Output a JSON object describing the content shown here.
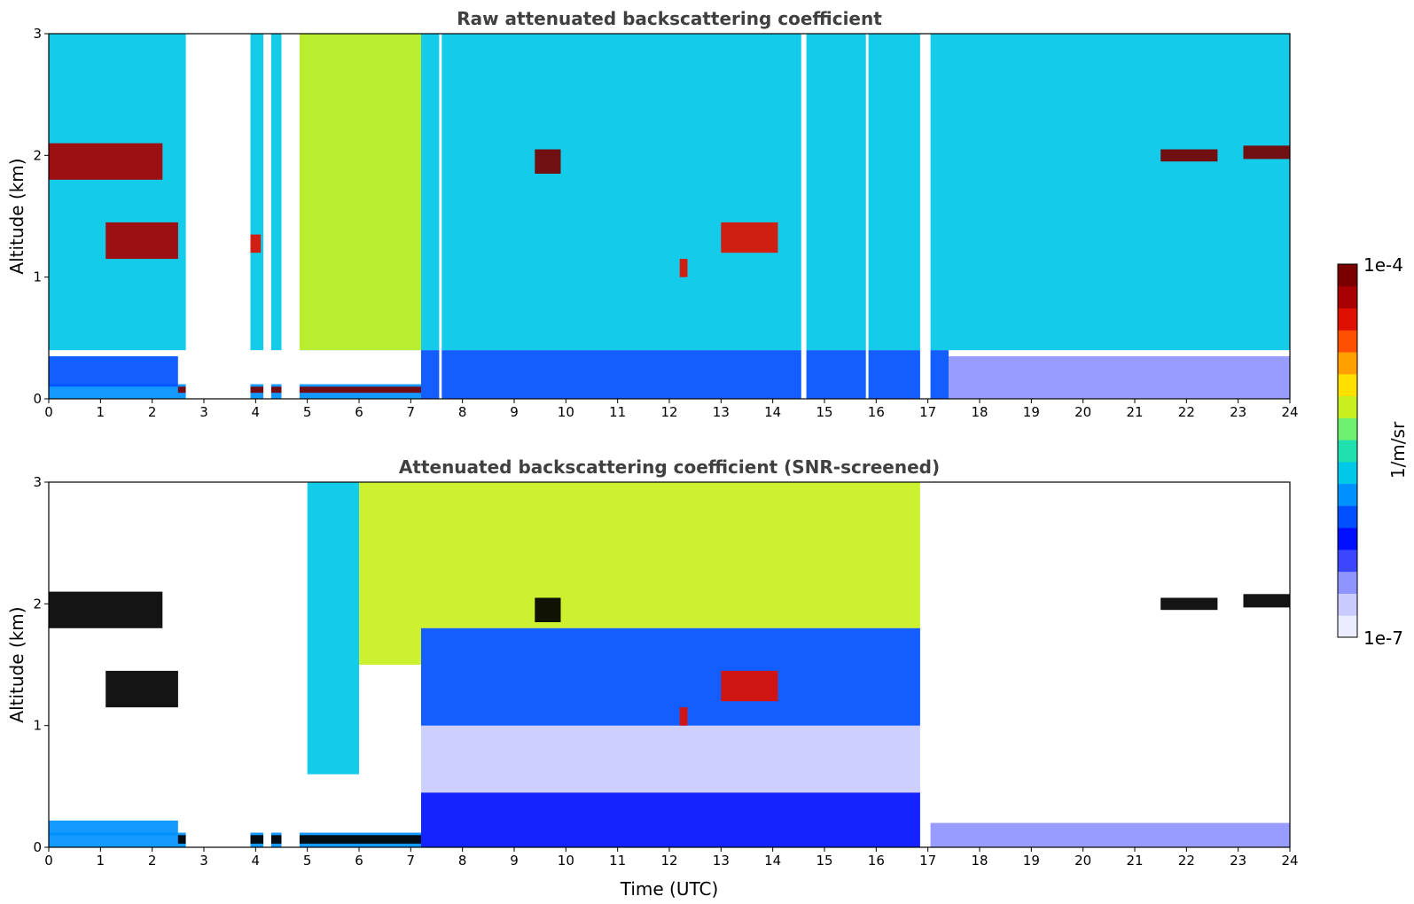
{
  "colors": {
    "colormap": [
      "#ececff",
      "#c9cbff",
      "#8f94ff",
      "#3d46ff",
      "#0010ff",
      "#0050ff",
      "#0090ff",
      "#00c8e8",
      "#20e0b0",
      "#70f070",
      "#c8f020",
      "#ffe000",
      "#ffa000",
      "#ff5000",
      "#e01000",
      "#a80000",
      "#7a0000"
    ],
    "screened_saturated": "#000000",
    "title_text": "#404040"
  },
  "chart_data": [
    {
      "type": "heatmap",
      "title": "Raw attenuated backscattering coefficient",
      "xlabel": "",
      "ylabel": "Altitude (km)",
      "xlim": [
        0,
        24
      ],
      "ylim": [
        0,
        3
      ],
      "xticks": [
        "0",
        "1",
        "2",
        "3",
        "4",
        "5",
        "6",
        "7",
        "8",
        "9",
        "10",
        "11",
        "12",
        "13",
        "14",
        "15",
        "16",
        "17",
        "18",
        "19",
        "20",
        "21",
        "22",
        "23",
        "24"
      ],
      "yticks": [
        "0",
        "1",
        "2",
        "3"
      ],
      "regions": [
        {
          "x": [
            0,
            7.2
          ],
          "y": [
            0,
            0.12
          ],
          "level": 0.4
        },
        {
          "x": [
            2.5,
            7.2
          ],
          "y": [
            0.05,
            0.1
          ],
          "level": 0.97
        },
        {
          "x": [
            0,
            2.5
          ],
          "y": [
            0.1,
            0.35
          ],
          "level": 0.3
        },
        {
          "x": [
            7.2,
            17.4
          ],
          "y": [
            0,
            0.4
          ],
          "level": 0.32
        },
        {
          "x": [
            17.4,
            24
          ],
          "y": [
            0,
            0.35
          ],
          "level": 0.12
        },
        {
          "x": [
            0,
            24
          ],
          "y": [
            0.4,
            3
          ],
          "level": 0.45
        },
        {
          "x": [
            4.8,
            7.2
          ],
          "y": [
            0.4,
            3
          ],
          "level": 0.62
        },
        {
          "x": [
            0,
            2.2
          ],
          "y": [
            1.8,
            2.1
          ],
          "level": 0.95
        },
        {
          "x": [
            1.1,
            2.5
          ],
          "y": [
            1.15,
            1.45
          ],
          "level": 0.95
        },
        {
          "x": [
            3.9,
            4.1
          ],
          "y": [
            1.2,
            1.35
          ],
          "level": 0.9
        },
        {
          "x": [
            9.4,
            9.9
          ],
          "y": [
            1.85,
            2.05
          ],
          "level": 0.97
        },
        {
          "x": [
            12.2,
            12.35
          ],
          "y": [
            1.0,
            1.15
          ],
          "level": 0.9
        },
        {
          "x": [
            13.0,
            14.1
          ],
          "y": [
            1.2,
            1.45
          ],
          "level": 0.85
        },
        {
          "x": [
            21.5,
            22.6
          ],
          "y": [
            1.95,
            2.05
          ],
          "level": 0.97
        },
        {
          "x": [
            23.1,
            24
          ],
          "y": [
            1.97,
            2.08
          ],
          "level": 0.97
        }
      ],
      "gaps": [
        [
          2.65,
          3.9
        ],
        [
          4.15,
          4.3
        ],
        [
          4.5,
          4.85
        ],
        [
          7.55,
          7.6
        ],
        [
          14.55,
          14.65
        ],
        [
          15.8,
          15.85
        ],
        [
          16.85,
          17.05
        ]
      ]
    },
    {
      "type": "heatmap",
      "title": "Attenuated backscattering coefficient (SNR-screened)",
      "xlabel": "Time (UTC)",
      "ylabel": "Altitude (km)",
      "xlim": [
        0,
        24
      ],
      "ylim": [
        0,
        3
      ],
      "xticks": [
        "0",
        "1",
        "2",
        "3",
        "4",
        "5",
        "6",
        "7",
        "8",
        "9",
        "10",
        "11",
        "12",
        "13",
        "14",
        "15",
        "16",
        "17",
        "18",
        "19",
        "20",
        "21",
        "22",
        "23",
        "24"
      ],
      "yticks": [
        "0",
        "1",
        "2",
        "3"
      ],
      "regions": [
        {
          "x": [
            0,
            7.2
          ],
          "y": [
            0,
            0.12
          ],
          "level": 0.4
        },
        {
          "x": [
            2.5,
            7.2
          ],
          "y": [
            0.03,
            0.1
          ],
          "level": 1.0
        },
        {
          "x": [
            0,
            2.5
          ],
          "y": [
            0.1,
            0.22
          ],
          "level": 0.35
        },
        {
          "x": [
            7.2,
            17.0
          ],
          "y": [
            0,
            0.45
          ],
          "level": 0.28
        },
        {
          "x": [
            7.2,
            17.0
          ],
          "y": [
            0.45,
            1.0
          ],
          "level": 0.08
        },
        {
          "x": [
            17.0,
            24
          ],
          "y": [
            0,
            0.2
          ],
          "level": 0.15
        },
        {
          "x": [
            5.0,
            6.0
          ],
          "y": [
            0.6,
            3
          ],
          "level": 0.42
        },
        {
          "x": [
            6.0,
            7.2
          ],
          "y": [
            1.5,
            3
          ],
          "level": 0.62
        },
        {
          "x": [
            7.2,
            17.0
          ],
          "y": [
            1.8,
            3
          ],
          "level": 0.6
        },
        {
          "x": [
            7.2,
            17.0
          ],
          "y": [
            1.0,
            1.8
          ],
          "level": 0.3
        },
        {
          "x": [
            0,
            2.2
          ],
          "y": [
            1.8,
            2.1
          ],
          "level": 1.0
        },
        {
          "x": [
            1.1,
            2.5
          ],
          "y": [
            1.15,
            1.45
          ],
          "level": 1.0
        },
        {
          "x": [
            9.4,
            9.9
          ],
          "y": [
            1.85,
            2.05
          ],
          "level": 1.0
        },
        {
          "x": [
            12.2,
            12.35
          ],
          "y": [
            1.0,
            1.15
          ],
          "level": 0.9
        },
        {
          "x": [
            13.0,
            14.1
          ],
          "y": [
            1.2,
            1.45
          ],
          "level": 0.85
        },
        {
          "x": [
            21.5,
            22.6
          ],
          "y": [
            1.95,
            2.05
          ],
          "level": 1.0
        },
        {
          "x": [
            23.1,
            24
          ],
          "y": [
            1.97,
            2.08
          ],
          "level": 1.0
        }
      ],
      "gaps": [
        [
          2.65,
          3.9
        ],
        [
          4.15,
          4.3
        ],
        [
          4.5,
          4.85
        ],
        [
          16.85,
          17.05
        ]
      ]
    }
  ],
  "colorbar": {
    "label": "1/m/sr",
    "min_label": "1e-7",
    "max_label": "1e-4"
  }
}
